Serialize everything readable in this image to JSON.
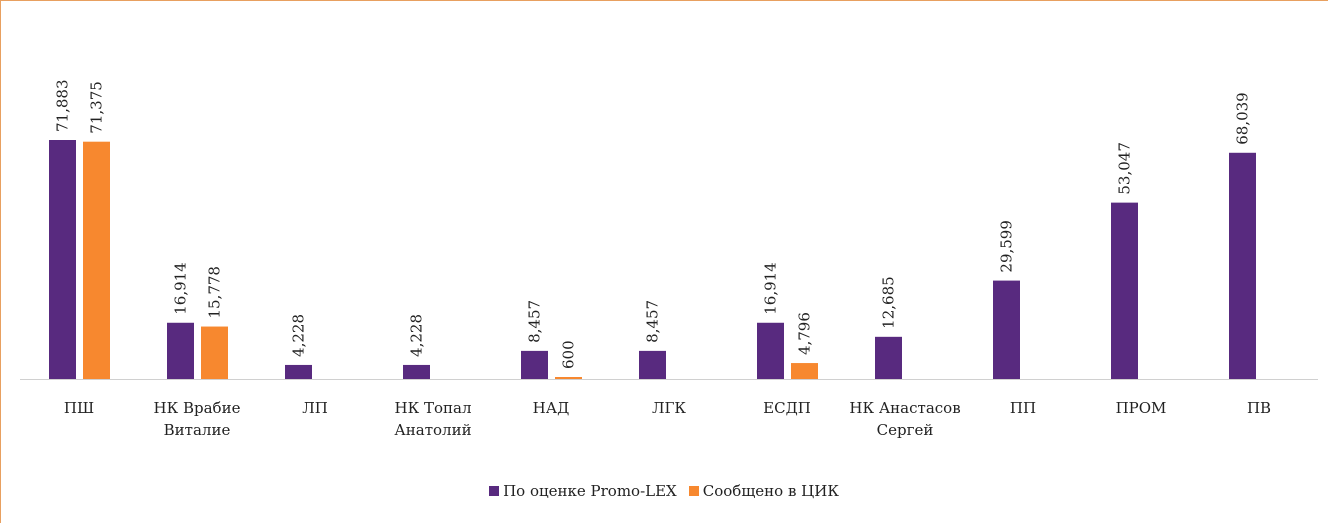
{
  "chart_data": {
    "type": "bar",
    "categories": [
      "ПШ",
      "НК Врабие Виталие",
      "ЛП",
      "НК Топал Анатолий",
      "НАД",
      "ЛГК",
      "ЕСДП",
      "НК Анастасов Сергей",
      "ПП",
      "ПРОМ",
      "ПВ"
    ],
    "series": [
      {
        "name": "По оценке Promo-LEX",
        "color": "#582a7f",
        "values": [
          71883,
          16914,
          4228,
          4228,
          8457,
          8457,
          16914,
          12685,
          29599,
          53047,
          68039
        ],
        "value_labels": [
          "71,883",
          "16,914",
          "4,228",
          "4,228",
          "8,457",
          "8,457",
          "16,914",
          "12,685",
          "29,599",
          "53,047",
          "68,039"
        ]
      },
      {
        "name": "Сообщено в ЦИК",
        "color": "#f7882f",
        "values": [
          71375,
          15778,
          null,
          null,
          600,
          null,
          4796,
          null,
          null,
          null,
          null
        ],
        "value_labels": [
          "71,375",
          "15,778",
          null,
          null,
          "600",
          null,
          "4,796",
          null,
          null,
          null,
          null
        ]
      }
    ],
    "legend": "bottom"
  }
}
